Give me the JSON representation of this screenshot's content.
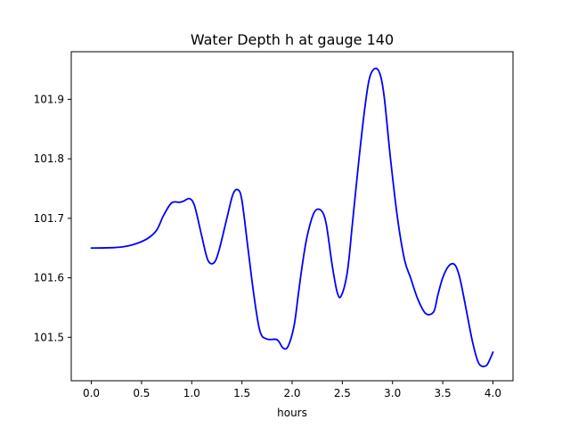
{
  "chart_data": {
    "type": "line",
    "title": "Water Depth h at gauge 140",
    "xlabel": "hours",
    "ylabel": "",
    "xlim": [
      -0.2,
      4.2
    ],
    "ylim": [
      101.427,
      101.98
    ],
    "xticks": [
      0.0,
      0.5,
      1.0,
      1.5,
      2.0,
      2.5,
      3.0,
      3.5,
      4.0
    ],
    "xtick_labels": [
      "0.0",
      "0.5",
      "1.0",
      "1.5",
      "2.0",
      "2.5",
      "3.0",
      "3.5",
      "4.0"
    ],
    "yticks": [
      101.5,
      101.6,
      101.7,
      101.8,
      101.9
    ],
    "ytick_labels": [
      "101.5",
      "101.6",
      "101.7",
      "101.8",
      "101.9"
    ],
    "grid": false,
    "line_color": "#0000ff",
    "series": [
      {
        "name": "",
        "x": [
          0.0,
          0.25,
          0.4,
          0.55,
          0.65,
          0.72,
          0.8,
          0.88,
          0.92,
          0.98,
          1.03,
          1.1,
          1.16,
          1.22,
          1.27,
          1.35,
          1.41,
          1.46,
          1.5,
          1.56,
          1.62,
          1.68,
          1.75,
          1.85,
          1.91,
          1.96,
          2.02,
          2.06,
          2.1,
          2.15,
          2.22,
          2.29,
          2.34,
          2.4,
          2.45,
          2.49,
          2.55,
          2.6,
          2.66,
          2.72,
          2.77,
          2.83,
          2.88,
          2.92,
          2.98,
          3.05,
          3.12,
          3.18,
          3.25,
          3.33,
          3.41,
          3.45,
          3.5,
          3.56,
          3.62,
          3.67,
          3.73,
          3.8,
          3.86,
          3.93,
          3.97,
          4.0
        ],
        "y": [
          101.65,
          101.651,
          101.655,
          101.665,
          101.68,
          101.705,
          101.726,
          101.727,
          101.729,
          101.733,
          101.72,
          101.67,
          101.63,
          101.625,
          101.645,
          101.7,
          101.74,
          101.748,
          101.73,
          101.65,
          101.57,
          101.51,
          101.497,
          101.496,
          101.482,
          101.485,
          101.52,
          101.57,
          101.62,
          101.67,
          101.71,
          101.713,
          101.69,
          101.62,
          101.575,
          101.57,
          101.61,
          101.69,
          101.79,
          101.88,
          101.935,
          101.952,
          101.94,
          101.9,
          101.8,
          101.7,
          101.63,
          101.6,
          101.565,
          101.54,
          101.543,
          101.57,
          101.6,
          101.62,
          101.622,
          101.6,
          101.55,
          101.49,
          101.456,
          101.452,
          101.463,
          101.475
        ]
      }
    ]
  }
}
